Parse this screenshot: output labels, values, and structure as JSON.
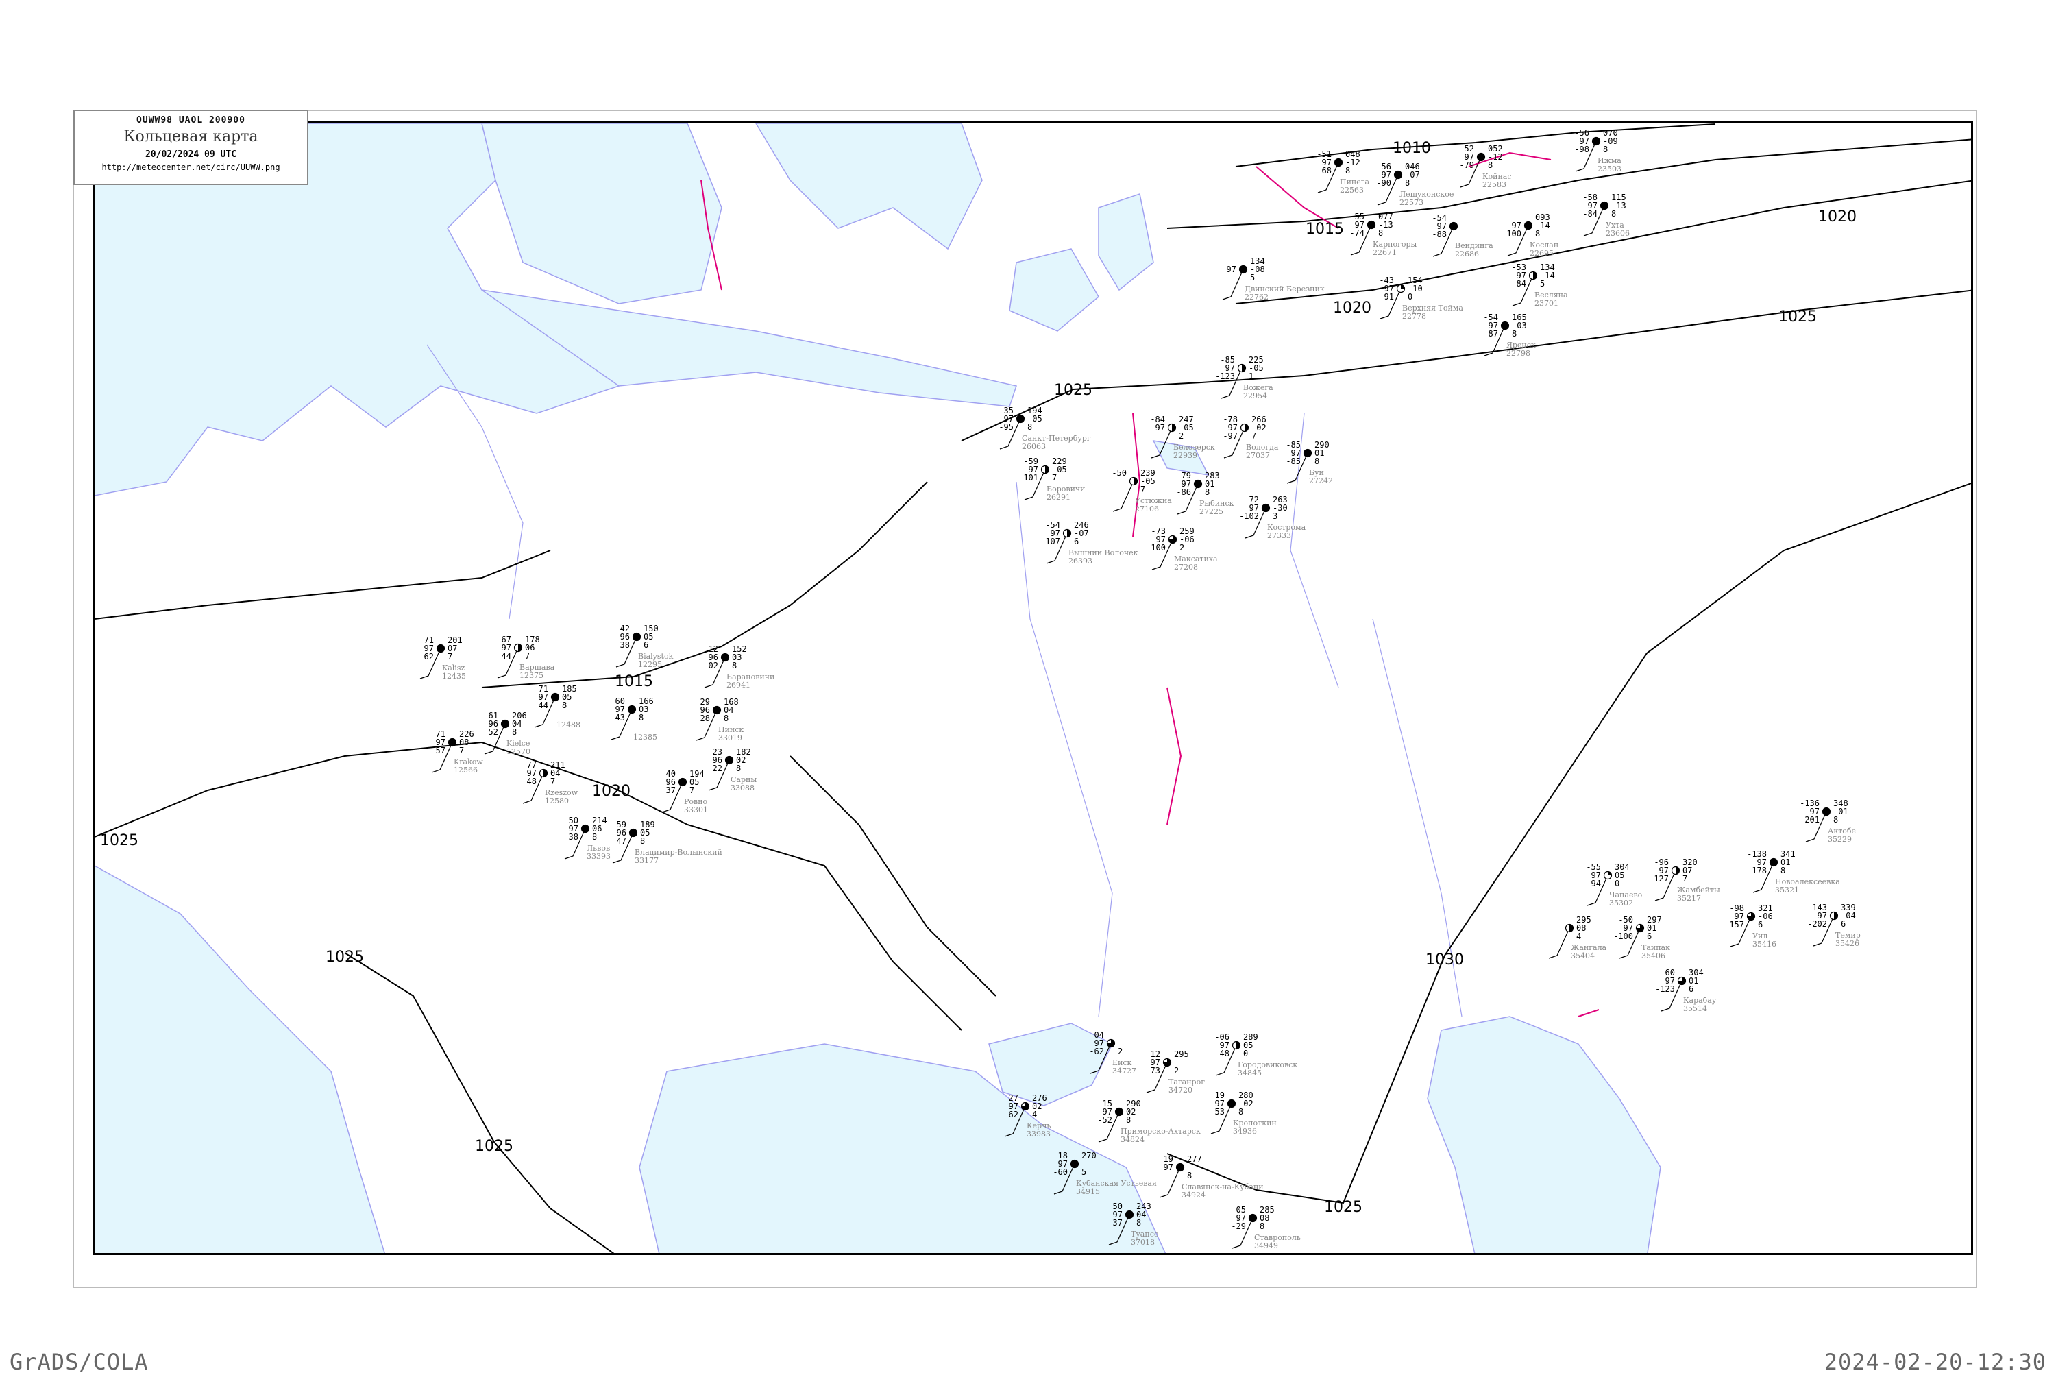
{
  "header": {
    "code": "QUWW98   UAOL   200900",
    "title": "Кольцевая карта",
    "date": "20/02/2024 09 UTC",
    "url": "http://meteocenter.net/circ/UUWW.png"
  },
  "footer": {
    "left": "GrADS/COLA",
    "right": "2024-02-20-12:30"
  },
  "colors": {
    "sea": "#e3f6fd",
    "coast": "#a0a0f0",
    "isobar": "#000000",
    "front": "#e0007a",
    "station_name": "#888888",
    "precip_green": "#00c040",
    "precip_blue": "#3090f0",
    "precip_yellow": "#ffff60"
  },
  "isobars": [
    "1010",
    "1015",
    "1020",
    "1025",
    "1025",
    "1020",
    "1015",
    "1020",
    "1025",
    "1025",
    "1030",
    "1025",
    "1025"
  ],
  "stations": [
    {
      "id": "26063",
      "name": "Санкт-Петербург",
      "cover": "full",
      "left": [
        "-35",
        "97",
        "-95"
      ],
      "right": [
        "194",
        "-05",
        "8"
      ]
    },
    {
      "id": "22939",
      "name": "Белозерск",
      "cover": "half",
      "left": [
        "-84",
        "97",
        ""
      ],
      "right": [
        "247",
        "-05",
        "2"
      ]
    },
    {
      "id": "27037",
      "name": "Вологда",
      "cover": "half",
      "left": [
        "-78",
        "97",
        "-97"
      ],
      "right": [
        "266",
        "-02",
        "7"
      ]
    },
    {
      "id": "26291",
      "name": "Боровичи",
      "cover": "half",
      "left": [
        "-59",
        "97",
        "-101"
      ],
      "right": [
        "229",
        "-05",
        "7"
      ]
    },
    {
      "id": "27106",
      "name": "Устюжна",
      "cover": "half",
      "left": [
        "-50",
        "",
        ""
      ],
      "right": [
        "239",
        "-05",
        "7"
      ]
    },
    {
      "id": "26393",
      "name": "Вышний Волочек",
      "cover": "half",
      "left": [
        "-54",
        "97",
        "-107"
      ],
      "right": [
        "246",
        "-07",
        "6"
      ]
    },
    {
      "id": "27208",
      "name": "Максатиха",
      "cover": "three-quarter",
      "left": [
        "-73",
        "97",
        "-100"
      ],
      "right": [
        "259",
        "-06",
        "2"
      ]
    },
    {
      "id": "27225",
      "name": "Рыбинск",
      "cover": "full",
      "left": [
        "-79",
        "97",
        "-86"
      ],
      "right": [
        "283",
        "01",
        "8"
      ]
    },
    {
      "id": "27333",
      "name": "Кострома",
      "cover": "full",
      "left": [
        "-72",
        "97",
        "-102"
      ],
      "right": [
        "263",
        "-30",
        "3"
      ]
    },
    {
      "id": "27242",
      "name": "Буй",
      "cover": "full",
      "left": [
        "-85",
        "97",
        "-85"
      ],
      "right": [
        "290",
        "01",
        "8"
      ]
    },
    {
      "id": "22954",
      "name": "Вожега",
      "cover": "half",
      "left": [
        "-85",
        "97",
        "-123"
      ],
      "right": [
        "225",
        "-05",
        "1"
      ]
    },
    {
      "id": "22563",
      "name": "Пинега",
      "cover": "full",
      "left": [
        "-51",
        "97",
        "-68"
      ],
      "right": [
        "048",
        "-12",
        "8"
      ]
    },
    {
      "id": "22573",
      "name": "Лешуконское",
      "cover": "full",
      "left": [
        "-56",
        "97",
        "-90"
      ],
      "right": [
        "046",
        "-07",
        "8"
      ]
    },
    {
      "id": "22583",
      "name": "Койнас",
      "cover": "full",
      "left": [
        "-52",
        "97",
        "-79"
      ],
      "right": [
        "052",
        "-12",
        "8"
      ]
    },
    {
      "id": "22671",
      "name": "Карпогоры",
      "cover": "full",
      "left": [
        "-55",
        "97",
        "-74"
      ],
      "right": [
        "077",
        "-13",
        "8"
      ]
    },
    {
      "id": "22686",
      "name": "Вендинга",
      "cover": "full",
      "left": [
        "-54",
        "97",
        "-88"
      ],
      "right": [
        "",
        "",
        ""
      ]
    },
    {
      "id": "22695",
      "name": "Кослан",
      "cover": "full",
      "left": [
        "",
        "97",
        "-100"
      ],
      "right": [
        "093",
        "-14",
        "8"
      ]
    },
    {
      "id": "23701",
      "name": "Весляна",
      "cover": "half",
      "left": [
        "-53",
        "97",
        "-84"
      ],
      "right": [
        "134",
        "-14",
        "5"
      ]
    },
    {
      "id": "23503",
      "name": "Ижма",
      "cover": "full",
      "left": [
        "-56",
        "97",
        "-98"
      ],
      "right": [
        "070",
        "-09",
        "8"
      ]
    },
    {
      "id": "23606",
      "name": "Ухта",
      "cover": "full",
      "left": [
        "-58",
        "97",
        "-84"
      ],
      "right": [
        "115",
        "-13",
        "8"
      ]
    },
    {
      "id": "22762",
      "name": "Двинский Березник",
      "cover": "full",
      "left": [
        "",
        "97",
        ""
      ],
      "right": [
        "134",
        "-08",
        "5"
      ]
    },
    {
      "id": "22778",
      "name": "Верхняя Тойма",
      "cover": "quarter",
      "left": [
        "-43",
        "97",
        "-91"
      ],
      "right": [
        "154",
        "-10",
        "0"
      ]
    },
    {
      "id": "22798",
      "name": "Яренск",
      "cover": "full",
      "left": [
        "-54",
        "97",
        "-87"
      ],
      "right": [
        "165",
        "-03",
        "8"
      ]
    },
    {
      "id": "12375",
      "name": "Варшава",
      "cover": "half",
      "left": [
        "67",
        "97",
        "44"
      ],
      "right": [
        "178",
        "06",
        "7"
      ]
    },
    {
      "id": "12435",
      "name": "Kalisz",
      "cover": "full",
      "left": [
        "71",
        "97",
        "62"
      ],
      "right": [
        "201",
        "07",
        "7"
      ]
    },
    {
      "id": "12295",
      "name": "Bialystok",
      "cover": "full",
      "left": [
        "42",
        "96",
        "38"
      ],
      "right": [
        "150",
        "05",
        "6"
      ]
    },
    {
      "id": "12385",
      "name": "",
      "cover": "full",
      "left": [
        "60",
        "97",
        "43"
      ],
      "right": [
        "166",
        "03",
        "8"
      ]
    },
    {
      "id": "12488",
      "name": "",
      "cover": "full",
      "left": [
        "71",
        "97",
        "44"
      ],
      "right": [
        "185",
        "05",
        "8"
      ]
    },
    {
      "id": "12570",
      "name": "Kielce",
      "cover": "full",
      "left": [
        "61",
        "96",
        "52"
      ],
      "right": [
        "206",
        "04",
        "8"
      ]
    },
    {
      "id": "12566",
      "name": "Krakow",
      "cover": "full",
      "left": [
        "71",
        "97",
        "57"
      ],
      "right": [
        "226",
        "08",
        "7"
      ]
    },
    {
      "id": "33019",
      "name": "Пинск",
      "cover": "full",
      "left": [
        "29",
        "96",
        "28"
      ],
      "right": [
        "168",
        "04",
        "8"
      ]
    },
    {
      "id": "26941",
      "name": "Барановичи",
      "cover": "full",
      "left": [
        "12",
        "96",
        "02"
      ],
      "right": [
        "152",
        "03",
        "8"
      ]
    },
    {
      "id": "33088",
      "name": "Сарны",
      "cover": "full",
      "left": [
        "23",
        "96",
        "22"
      ],
      "right": [
        "182",
        "02",
        "8"
      ]
    },
    {
      "id": "33301",
      "name": "Ровно",
      "cover": "full",
      "left": [
        "40",
        "96",
        "37"
      ],
      "right": [
        "194",
        "05",
        "7"
      ]
    },
    {
      "id": "33177",
      "name": "Владимир-Волынский",
      "cover": "full",
      "left": [
        "59",
        "96",
        "47"
      ],
      "right": [
        "189",
        "05",
        "8"
      ]
    },
    {
      "id": "12580",
      "name": "Rzeszow",
      "cover": "half",
      "left": [
        "77",
        "97",
        "48"
      ],
      "right": [
        "211",
        "04",
        "7"
      ]
    },
    {
      "id": "33393",
      "name": "Львов",
      "cover": "full",
      "left": [
        "50",
        "97",
        "38"
      ],
      "right": [
        "214",
        "06",
        "8"
      ]
    },
    {
      "id": "35302",
      "name": "Чапаево",
      "cover": "quarter",
      "left": [
        "-55",
        "97",
        "-94"
      ],
      "right": [
        "304",
        "05",
        "0"
      ]
    },
    {
      "id": "35217",
      "name": "Жамбейты",
      "cover": "half",
      "left": [
        "-96",
        "97",
        "-127"
      ],
      "right": [
        "320",
        "07",
        "7"
      ]
    },
    {
      "id": "35321",
      "name": "Новоалексеевка",
      "cover": "full",
      "left": [
        "-138",
        "97",
        "-178"
      ],
      "right": [
        "341",
        "01",
        "8"
      ]
    },
    {
      "id": "35229",
      "name": "Актобе",
      "cover": "full",
      "left": [
        "-136",
        "97",
        "-201"
      ],
      "right": [
        "348",
        "-01",
        "8"
      ]
    },
    {
      "id": "35426",
      "name": "Темир",
      "cover": "half",
      "left": [
        "-143",
        "97",
        "-202"
      ],
      "right": [
        "339",
        "-04",
        "6"
      ]
    },
    {
      "id": "35416",
      "name": "Уил",
      "cover": "three-quarter",
      "left": [
        "-98",
        "97",
        "-157"
      ],
      "right": [
        "321",
        "-06",
        "6"
      ]
    },
    {
      "id": "35406",
      "name": "Тайпак",
      "cover": "three-quarter",
      "left": [
        "-50",
        "97",
        "-100"
      ],
      "right": [
        "297",
        "01",
        "6"
      ]
    },
    {
      "id": "35514",
      "name": "Карабау",
      "cover": "three-quarter",
      "left": [
        "-60",
        "97",
        "-123"
      ],
      "right": [
        "304",
        "01",
        "6"
      ]
    },
    {
      "id": "35404",
      "name": "Жангала",
      "cover": "half",
      "left": [
        "",
        "",
        ""
      ],
      "right": [
        "295",
        "08",
        "4"
      ]
    },
    {
      "id": "34727",
      "name": "Ейск",
      "cover": "three-quarter",
      "left": [
        "04",
        "97",
        "-62"
      ],
      "right": [
        "",
        "",
        "2"
      ]
    },
    {
      "id": "34720",
      "name": "Таганрог",
      "cover": "three-quarter",
      "left": [
        "12",
        "97",
        "-73"
      ],
      "right": [
        "295",
        "",
        "2"
      ]
    },
    {
      "id": "34824",
      "name": "Приморско-Ахтарск",
      "cover": "full",
      "left": [
        "15",
        "97",
        "-52"
      ],
      "right": [
        "290",
        "02",
        "8"
      ]
    },
    {
      "id": "33983",
      "name": "Керчь",
      "cover": "three-quarter",
      "left": [
        "27",
        "97",
        "-62"
      ],
      "right": [
        "276",
        "02",
        "4"
      ]
    },
    {
      "id": "34915",
      "name": "Кубанская Устьевая",
      "cover": "full",
      "left": [
        "18",
        "97",
        "-60"
      ],
      "right": [
        "270",
        "",
        "5"
      ]
    },
    {
      "id": "34924",
      "name": "Славянск-на-Кубани",
      "cover": "full",
      "left": [
        "19",
        "97",
        ""
      ],
      "right": [
        "277",
        "",
        "8"
      ]
    },
    {
      "id": "34936",
      "name": "Кропоткин",
      "cover": "full",
      "left": [
        "19",
        "97",
        "-53"
      ],
      "right": [
        "280",
        "-02",
        "8"
      ]
    },
    {
      "id": "34845",
      "name": "Городовиковск",
      "cover": "half",
      "left": [
        "-06",
        "97",
        "-48"
      ],
      "right": [
        "289",
        "05",
        "0"
      ]
    },
    {
      "id": "37018",
      "name": "Туапсе",
      "cover": "full",
      "left": [
        "50",
        "97",
        "37"
      ],
      "right": [
        "243",
        "04",
        "8"
      ]
    },
    {
      "id": "34949",
      "name": "Ставрополь",
      "cover": "full",
      "left": [
        "-05",
        "97",
        "-29"
      ],
      "right": [
        "285",
        "08",
        "8"
      ]
    }
  ]
}
